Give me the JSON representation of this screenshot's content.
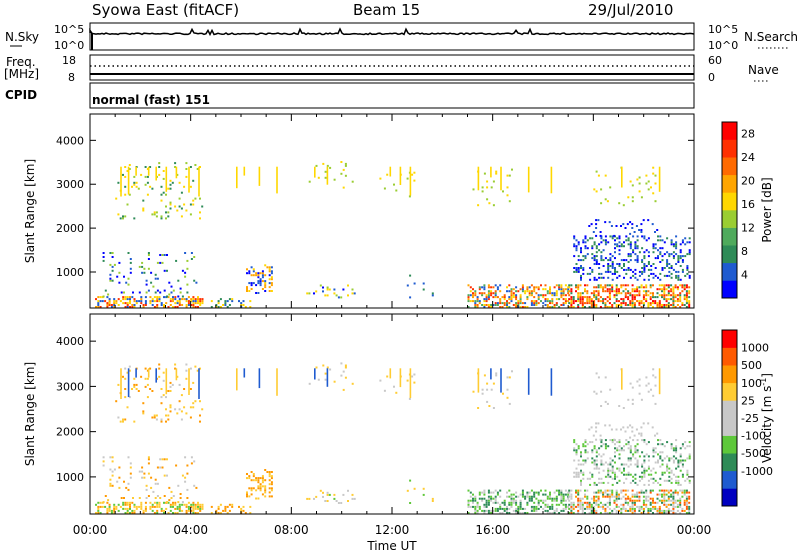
{
  "header": {
    "title": "Syowa East (fitACF)",
    "beam": "Beam 15",
    "date": "29/Jul/2010"
  },
  "top_panel": {
    "left_label": "N.Sky",
    "right_label": "N.Search",
    "left_ticks": [
      "10^5",
      "10^0"
    ],
    "right_ticks": [
      "10^5",
      "10^0"
    ]
  },
  "freq_panel": {
    "left_label_1": "Freq.",
    "left_label_2": "[MHz]",
    "right_label": "Nave",
    "left_ticks": [
      "18",
      "8"
    ],
    "right_ticks": [
      "60",
      "0"
    ]
  },
  "cpid": {
    "label": "CPID",
    "value": "normal (fast) 151"
  },
  "colors": {
    "power_scale": [
      "#0000ff",
      "#1f5bd0",
      "#2e8b57",
      "#4faa5c",
      "#9acd32",
      "#ffd700",
      "#ffa500",
      "#ff6a00",
      "#ff3000",
      "#ff0000"
    ],
    "velocity_scale": [
      "#ff0000",
      "#ff5a00",
      "#ff9900",
      "#ffcc33",
      "#c8c8c8",
      "#c8c8c8",
      "#5ec83a",
      "#2e8b57",
      "#1f5bd0",
      "#0000c0"
    ]
  },
  "chart_data": [
    {
      "type": "heatmap",
      "name": "power",
      "ylabel": "Slant Range [km]",
      "yticks": [
        "1000",
        "2000",
        "3000",
        "4000"
      ],
      "ylim": [
        180,
        4600
      ],
      "xlim": [
        0,
        24
      ],
      "colorbar_label": "Power [dB]",
      "colorbar_ticks": [
        "4",
        "8",
        "12",
        "16",
        "20",
        "24",
        "28"
      ],
      "colorbar_range": [
        0,
        30
      ]
    },
    {
      "type": "heatmap",
      "name": "velocity",
      "ylabel": "Slant Range [km]",
      "yticks": [
        "1000",
        "2000",
        "3000",
        "4000"
      ],
      "ylim": [
        180,
        4600
      ],
      "xlim": [
        0,
        24
      ],
      "xlabel": "Time UT",
      "xticks": [
        "00:00",
        "04:00",
        "08:00",
        "12:00",
        "16:00",
        "20:00",
        "00:00"
      ],
      "colorbar_label": "Velocity [m s",
      "colorbar_label_sup": "-1",
      "colorbar_label_end": "]",
      "colorbar_ticks": [
        "1000",
        "500",
        "100",
        "25",
        "-25",
        "-100",
        "-500",
        "-1000"
      ]
    }
  ]
}
